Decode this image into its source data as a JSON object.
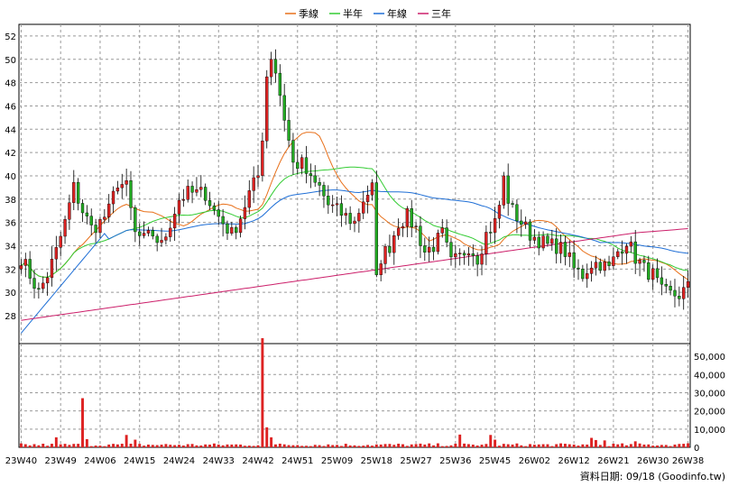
{
  "chart_data": {
    "type": "candlestick",
    "legend": [
      {
        "name": "季線",
        "color": "#e8701a"
      },
      {
        "name": "半年",
        "color": "#33cc33"
      },
      {
        "name": "年線",
        "color": "#1f6fd6"
      },
      {
        "name": "三年",
        "color": "#cc1f6a"
      }
    ],
    "price_axis": {
      "ticks": [
        28,
        30,
        32,
        34,
        36,
        38,
        40,
        42,
        44,
        46,
        48,
        50,
        52
      ],
      "ylim": [
        25.6,
        53.0
      ]
    },
    "volume_axis": {
      "ticks": [
        "0",
        "10,000",
        "20,000",
        "30,000",
        "40,000",
        "50,000"
      ],
      "tick_values": [
        0,
        10000,
        20000,
        30000,
        40000,
        50000
      ],
      "ylim": [
        0,
        57000
      ]
    },
    "x_ticks": [
      {
        "label": "23W40",
        "i": 0
      },
      {
        "label": "23W49",
        "i": 9
      },
      {
        "label": "24W06",
        "i": 18
      },
      {
        "label": "24W15",
        "i": 27
      },
      {
        "label": "24W24",
        "i": 36
      },
      {
        "label": "24W33",
        "i": 45
      },
      {
        "label": "24W42",
        "i": 54
      },
      {
        "label": "24W51",
        "i": 63
      },
      {
        "label": "25W09",
        "i": 72
      },
      {
        "label": "25W18",
        "i": 81
      },
      {
        "label": "25W27",
        "i": 90
      },
      {
        "label": "25W36",
        "i": 99
      },
      {
        "label": "25W45",
        "i": 108
      },
      {
        "label": "26W02",
        "i": 117
      },
      {
        "label": "26W12",
        "i": 126
      },
      {
        "label": "26W21",
        "i": 135
      },
      {
        "label": "26W30",
        "i": 144
      },
      {
        "label": "26W38",
        "i": 152
      }
    ],
    "weeks": 153,
    "anchors": [
      [
        0,
        33
      ],
      [
        2,
        31.5
      ],
      [
        4,
        30
      ],
      [
        6,
        31.5
      ],
      [
        8,
        33.5
      ],
      [
        10,
        36
      ],
      [
        12,
        39
      ],
      [
        14,
        37
      ],
      [
        16,
        35.5
      ],
      [
        18,
        36
      ],
      [
        20,
        37
      ],
      [
        22,
        39.5
      ],
      [
        24,
        39
      ],
      [
        26,
        35
      ],
      [
        28,
        34.5
      ],
      [
        30,
        35
      ],
      [
        32,
        34
      ],
      [
        34,
        36
      ],
      [
        36,
        38
      ],
      [
        38,
        38.5
      ],
      [
        40,
        38.5
      ],
      [
        42,
        38.5
      ],
      [
        44,
        37
      ],
      [
        46,
        36
      ],
      [
        48,
        35
      ],
      [
        50,
        36.5
      ],
      [
        52,
        38.5
      ],
      [
        54,
        40
      ],
      [
        56,
        45
      ],
      [
        58,
        49
      ],
      [
        60,
        45
      ],
      [
        62,
        41
      ],
      [
        64,
        41
      ],
      [
        66,
        39.5
      ],
      [
        68,
        39
      ],
      [
        70,
        37.5
      ],
      [
        72,
        37
      ],
      [
        74,
        36.5
      ],
      [
        76,
        36
      ],
      [
        78,
        38
      ],
      [
        80,
        39
      ],
      [
        82,
        33
      ],
      [
        84,
        34
      ],
      [
        86,
        36
      ],
      [
        88,
        36.5
      ],
      [
        90,
        35.5
      ],
      [
        92,
        33.5
      ],
      [
        94,
        34
      ],
      [
        96,
        35
      ],
      [
        98,
        32.5
      ],
      [
        100,
        33
      ],
      [
        102,
        34
      ],
      [
        104,
        33
      ],
      [
        106,
        35
      ],
      [
        108,
        36
      ],
      [
        110,
        39
      ],
      [
        112,
        37
      ],
      [
        114,
        36
      ],
      [
        116,
        35
      ],
      [
        118,
        34.5
      ],
      [
        120,
        34
      ],
      [
        122,
        34
      ],
      [
        124,
        33.5
      ],
      [
        126,
        32
      ],
      [
        128,
        31.5
      ],
      [
        130,
        32.5
      ],
      [
        132,
        32.5
      ],
      [
        134,
        32
      ],
      [
        136,
        33.5
      ],
      [
        138,
        34.5
      ],
      [
        140,
        33
      ],
      [
        142,
        32
      ],
      [
        144,
        31.5
      ],
      [
        146,
        30
      ],
      [
        148,
        29.8
      ],
      [
        150,
        29.8
      ],
      [
        152,
        30.4
      ]
    ],
    "volume_spikes": [
      {
        "i": 8,
        "v": 5500
      },
      {
        "i": 14,
        "v": 27000
      },
      {
        "i": 15,
        "v": 4500
      },
      {
        "i": 24,
        "v": 6800
      },
      {
        "i": 26,
        "v": 4200
      },
      {
        "i": 55,
        "v": 60000
      },
      {
        "i": 56,
        "v": 11000
      },
      {
        "i": 57,
        "v": 5500
      },
      {
        "i": 100,
        "v": 7000
      },
      {
        "i": 107,
        "v": 6800
      },
      {
        "i": 108,
        "v": 4200
      },
      {
        "i": 130,
        "v": 5200
      },
      {
        "i": 131,
        "v": 4000
      },
      {
        "i": 133,
        "v": 3800
      },
      {
        "i": 140,
        "v": 3300
      },
      {
        "i": 152,
        "v": 2200
      }
    ],
    "footer": "資料日期: 09/18  (Goodinfo.tw)"
  }
}
